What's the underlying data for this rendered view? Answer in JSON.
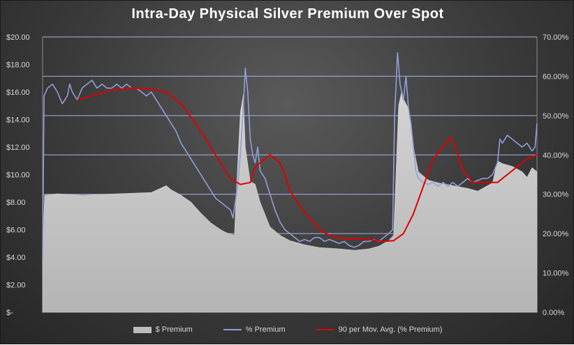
{
  "chart_data": {
    "type": "area",
    "title": "Intra-Day  Physical  Silver  Premium  Over  Spot",
    "y_left": {
      "ticks": [
        "$-",
        "$2.00",
        "$4.00",
        "$6.00",
        "$8.00",
        "$10.00",
        "$12.00",
        "$14.00",
        "$16.00",
        "$18.00",
        "$20.00"
      ],
      "range": [
        0,
        20
      ]
    },
    "y_right": {
      "ticks": [
        "0.00%",
        "10.00%",
        "20.00%",
        "30.00%",
        "40.00%",
        "50.00%",
        "60.00%",
        "70.00%"
      ],
      "range": [
        0,
        70
      ]
    },
    "x_range": [
      0,
      100
    ],
    "series": [
      {
        "name": "$ Premium",
        "kind": "area",
        "axis": "left",
        "color": "#c8c8c8",
        "points": [
          [
            0,
            3.8
          ],
          [
            0.4,
            8.5
          ],
          [
            3,
            8.6
          ],
          [
            8,
            8.5
          ],
          [
            15,
            8.6
          ],
          [
            22,
            8.7
          ],
          [
            25,
            9.2
          ],
          [
            26,
            8.9
          ],
          [
            28,
            8.5
          ],
          [
            30,
            8.0
          ],
          [
            32,
            7.2
          ],
          [
            34,
            6.5
          ],
          [
            36,
            6.0
          ],
          [
            37,
            5.8
          ],
          [
            38.8,
            5.6
          ],
          [
            39.3,
            9.5
          ],
          [
            40,
            14.5
          ],
          [
            40.6,
            15.8
          ],
          [
            41,
            12.0
          ],
          [
            42,
            9.5
          ],
          [
            43,
            9.3
          ],
          [
            44,
            8.0
          ],
          [
            46,
            6.2
          ],
          [
            48,
            5.6
          ],
          [
            50,
            5.2
          ],
          [
            53,
            4.9
          ],
          [
            56,
            4.7
          ],
          [
            60,
            4.6
          ],
          [
            63,
            4.5
          ],
          [
            66,
            4.6
          ],
          [
            68,
            4.8
          ],
          [
            70,
            5.2
          ],
          [
            71,
            5.6
          ],
          [
            72,
            15.0
          ],
          [
            72.6,
            16.0
          ],
          [
            73,
            15.5
          ],
          [
            74,
            14.8
          ],
          [
            75,
            12.0
          ],
          [
            76,
            10.2
          ],
          [
            78,
            9.6
          ],
          [
            80,
            9.4
          ],
          [
            83,
            9.2
          ],
          [
            86,
            9.0
          ],
          [
            88,
            8.8
          ],
          [
            91,
            9.4
          ],
          [
            92,
            11.0
          ],
          [
            93,
            10.8
          ],
          [
            95,
            10.6
          ],
          [
            97,
            10.2
          ],
          [
            98,
            9.8
          ],
          [
            99,
            10.5
          ],
          [
            100,
            10.2
          ]
        ]
      },
      {
        "name": "% Premium",
        "kind": "line",
        "axis": "right",
        "color": "#8f9fd8",
        "points": [
          [
            0,
            13
          ],
          [
            0.3,
            55
          ],
          [
            1,
            57
          ],
          [
            2,
            58
          ],
          [
            3,
            56
          ],
          [
            4,
            53
          ],
          [
            5,
            55
          ],
          [
            5.5,
            58
          ],
          [
            6,
            56
          ],
          [
            7,
            54
          ],
          [
            8,
            57
          ],
          [
            9,
            58
          ],
          [
            10,
            59
          ],
          [
            11,
            57
          ],
          [
            12,
            58
          ],
          [
            13,
            57
          ],
          [
            14,
            57
          ],
          [
            15,
            58
          ],
          [
            16,
            57
          ],
          [
            17,
            58
          ],
          [
            18,
            57
          ],
          [
            19,
            57
          ],
          [
            20,
            56
          ],
          [
            21,
            55
          ],
          [
            22,
            56
          ],
          [
            23,
            54
          ],
          [
            24,
            52
          ],
          [
            25,
            50
          ],
          [
            26,
            48
          ],
          [
            27,
            46
          ],
          [
            28,
            43
          ],
          [
            29,
            41
          ],
          [
            30,
            39
          ],
          [
            31,
            37
          ],
          [
            32,
            35
          ],
          [
            33,
            33
          ],
          [
            34,
            31
          ],
          [
            35,
            29
          ],
          [
            36,
            28
          ],
          [
            37,
            27
          ],
          [
            38,
            26
          ],
          [
            38.5,
            24
          ],
          [
            39,
            28
          ],
          [
            39.5,
            33
          ],
          [
            40,
            40
          ],
          [
            40.5,
            50
          ],
          [
            41,
            62
          ],
          [
            41.5,
            56
          ],
          [
            42,
            44
          ],
          [
            42.5,
            40
          ],
          [
            43,
            38
          ],
          [
            43.5,
            42
          ],
          [
            44,
            36
          ],
          [
            45,
            34
          ],
          [
            46,
            30
          ],
          [
            47,
            26
          ],
          [
            48,
            23
          ],
          [
            49,
            21
          ],
          [
            50,
            20
          ],
          [
            51,
            19
          ],
          [
            52,
            18
          ],
          [
            53,
            18.5
          ],
          [
            54,
            18
          ],
          [
            55,
            19
          ],
          [
            56,
            19
          ],
          [
            57,
            18
          ],
          [
            58,
            18.5
          ],
          [
            59,
            18
          ],
          [
            60,
            17.5
          ],
          [
            61,
            18
          ],
          [
            62,
            17
          ],
          [
            63,
            16.5
          ],
          [
            64,
            17
          ],
          [
            65,
            18
          ],
          [
            66,
            18
          ],
          [
            67,
            18.5
          ],
          [
            68,
            18
          ],
          [
            69,
            19
          ],
          [
            70,
            20
          ],
          [
            70.8,
            21
          ],
          [
            71.2,
            50
          ],
          [
            71.8,
            66
          ],
          [
            72.3,
            58
          ],
          [
            73,
            54
          ],
          [
            73.5,
            60
          ],
          [
            74,
            52
          ],
          [
            74.5,
            48
          ],
          [
            75,
            42
          ],
          [
            75.5,
            36
          ],
          [
            76,
            34
          ],
          [
            77,
            33
          ],
          [
            78,
            32.5
          ],
          [
            79,
            33
          ],
          [
            80,
            32
          ],
          [
            81,
            33
          ],
          [
            82,
            32
          ],
          [
            83,
            33
          ],
          [
            84,
            32
          ],
          [
            85,
            33
          ],
          [
            86,
            34
          ],
          [
            87,
            33
          ],
          [
            88,
            33.5
          ],
          [
            89,
            34
          ],
          [
            90,
            34
          ],
          [
            91,
            35
          ],
          [
            92,
            38
          ],
          [
            92.5,
            44
          ],
          [
            93,
            43
          ],
          [
            94,
            45
          ],
          [
            95,
            44
          ],
          [
            96,
            43
          ],
          [
            97,
            42
          ],
          [
            98,
            43
          ],
          [
            99,
            41
          ],
          [
            99.6,
            42
          ],
          [
            100,
            48
          ]
        ]
      },
      {
        "name": "90 per Mov. Avg. (% Premium)",
        "kind": "line",
        "axis": "right",
        "color": "#e00000",
        "points": [
          [
            7,
            54
          ],
          [
            10,
            55
          ],
          [
            14,
            56.5
          ],
          [
            18,
            57
          ],
          [
            22,
            56.8
          ],
          [
            25,
            56
          ],
          [
            28,
            53
          ],
          [
            31,
            48
          ],
          [
            34,
            42
          ],
          [
            36,
            38
          ],
          [
            38,
            34
          ],
          [
            40,
            32.5
          ],
          [
            42,
            33
          ],
          [
            43,
            37
          ],
          [
            45,
            39
          ],
          [
            46,
            40
          ],
          [
            48,
            38
          ],
          [
            49,
            35
          ],
          [
            50,
            31
          ],
          [
            52,
            27
          ],
          [
            54,
            24
          ],
          [
            56,
            21
          ],
          [
            58,
            19.5
          ],
          [
            60,
            18.8
          ],
          [
            63,
            18.6
          ],
          [
            66,
            18.5
          ],
          [
            69,
            18
          ],
          [
            71,
            18.2
          ],
          [
            73,
            20
          ],
          [
            75,
            25
          ],
          [
            77,
            32
          ],
          [
            79,
            39
          ],
          [
            81,
            42
          ],
          [
            82.5,
            44.5
          ],
          [
            83.5,
            42
          ],
          [
            85,
            36
          ],
          [
            87,
            33
          ],
          [
            89,
            33
          ],
          [
            92,
            33
          ],
          [
            94,
            35
          ],
          [
            96,
            37
          ],
          [
            98,
            39
          ],
          [
            100,
            40
          ]
        ]
      }
    ],
    "legend": [
      "$ Premium",
      "% Premium",
      "90 per Mov. Avg. (% Premium)"
    ],
    "legend_position": "bottom",
    "grid": true
  }
}
